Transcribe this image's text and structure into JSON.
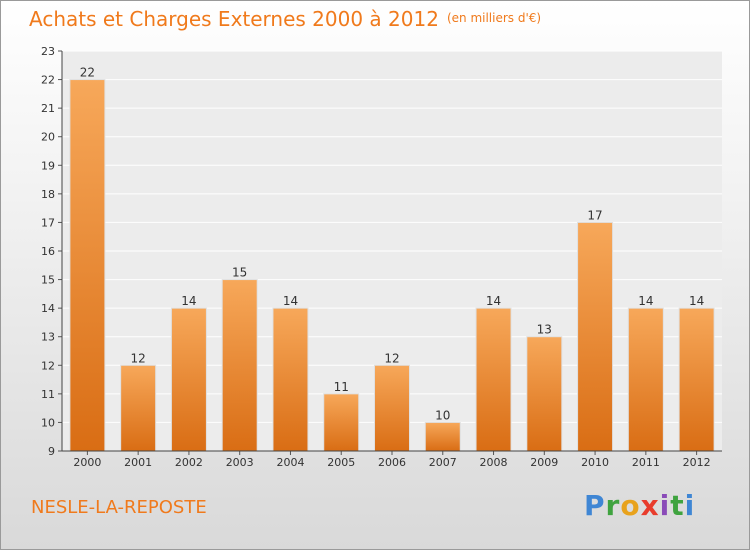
{
  "header": {
    "title": "Achats et Charges Externes 2000 à 2012",
    "unit": "(en milliers d'€)"
  },
  "footer": {
    "commune": "NESLE-LA-REPOSTE",
    "logo": "Proxiti",
    "logo_letters": [
      "P",
      "r",
      "o",
      "x",
      "i",
      "t",
      "i"
    ]
  },
  "colors": {
    "accent": "#f07a1c",
    "bar_top": "#f7a85a",
    "bar_bottom": "#d96d14"
  },
  "chart_data": {
    "type": "bar",
    "title": "Achats et Charges Externes 2000 à 2012",
    "subtitle": "(en milliers d'€)",
    "xlabel": "",
    "ylabel": "",
    "categories": [
      "2000",
      "2001",
      "2002",
      "2003",
      "2004",
      "2005",
      "2006",
      "2007",
      "2008",
      "2009",
      "2010",
      "2011",
      "2012"
    ],
    "values": [
      22,
      12,
      14,
      15,
      14,
      11,
      12,
      10,
      14,
      13,
      17,
      14,
      14
    ],
    "ylim": [
      9,
      23
    ],
    "yticks": [
      9,
      10,
      11,
      12,
      13,
      14,
      15,
      16,
      17,
      18,
      19,
      20,
      21,
      22,
      23
    ],
    "grid": true,
    "legend": "none"
  }
}
